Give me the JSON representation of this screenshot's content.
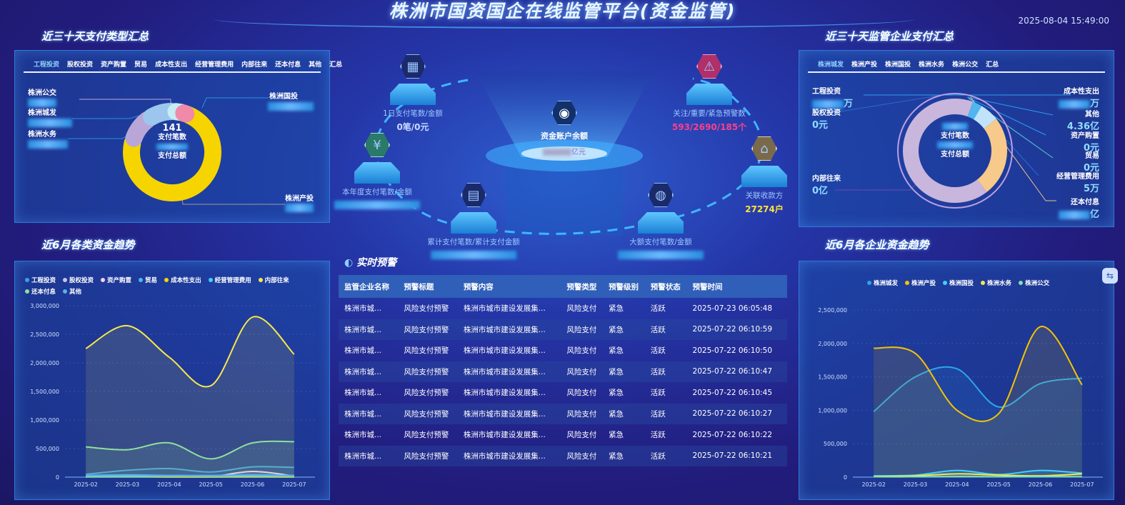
{
  "header": {
    "title": "株洲市国资国企在线监管平台(资金监管)",
    "datetime": "2025-08-04 15:49:00"
  },
  "left_top": {
    "title": "近三十天支付类型汇总",
    "tabs": [
      "工程投资",
      "股权投资",
      "资产购置",
      "贸易",
      "成本性支出",
      "经营管理费用",
      "内部往来",
      "还本付息",
      "其他",
      "汇总"
    ],
    "active_tab": 0,
    "labels": [
      "株洲公交",
      "株洲城发",
      "株洲水务",
      "株洲国投",
      "株洲产投"
    ],
    "center_value": "141",
    "center_label1": "支付笔数",
    "center_label2": "支付总额",
    "segments": [
      {
        "name": "株洲产投",
        "share": 0.74,
        "color": "#f5d400"
      },
      {
        "name": "株洲城发",
        "share": 0.11,
        "color": "#b9a6d8"
      },
      {
        "name": "株洲国投",
        "share": 0.1,
        "color": "#9cc6ee"
      },
      {
        "name": "株洲水务",
        "share": 0.04,
        "color": "#c6ecf4"
      },
      {
        "name": "株洲公交",
        "share": 0.01,
        "color": "#f08aa8"
      }
    ]
  },
  "left_bottom": {
    "title": "近6月各类资金趋势"
  },
  "right_top": {
    "title": "近三十天监管企业支付汇总",
    "tabs": [
      "株洲城发",
      "株洲产投",
      "株洲国投",
      "株洲水务",
      "株洲公交",
      "汇总"
    ],
    "active_tab": 0,
    "labels_left": [
      {
        "name": "工程投资",
        "value": "万"
      },
      {
        "name": "股权投资",
        "value": "0元"
      },
      {
        "name": "内部往来",
        "value": "0亿"
      }
    ],
    "labels_right": [
      {
        "name": "成本性支出",
        "value": "万"
      },
      {
        "name": "其他",
        "value": "4.36亿"
      },
      {
        "name": "资产购置",
        "value": "0元"
      },
      {
        "name": "贸易",
        "value": "0元"
      },
      {
        "name": "经营管理费用",
        "value": "5万"
      },
      {
        "name": "还本付息",
        "value": "亿"
      }
    ],
    "center_label1": "支付笔数",
    "center_label2": "支付总额",
    "segments": [
      {
        "share": 0.03,
        "color": "#4fb6f0"
      },
      {
        "share": 0.06,
        "color": "#bfe4fa"
      },
      {
        "share": 0.25,
        "color": "#f7c98a"
      },
      {
        "share": 0.66,
        "color": "#c9b6dc"
      }
    ]
  },
  "right_bottom": {
    "title": "近6月各企业资金趋势"
  },
  "center": {
    "balance": {
      "label": "资金账户余额",
      "unit": "亿元"
    },
    "nodes": [
      {
        "label": "1日支付笔数/金额",
        "value": "0笔/0元",
        "icon": "grid-icon"
      },
      {
        "label": "本年度支付笔数/金额",
        "value": "",
        "icon": "money-icon"
      },
      {
        "label": "累计支付笔数/累计支付金额",
        "value": "",
        "icon": "document-icon"
      },
      {
        "label": "大额支付笔数/金额",
        "value": "",
        "icon": "globe-icon"
      },
      {
        "label": "关注/重要/紧急预警数",
        "value": "593/2690/185个",
        "icon": "warning-icon"
      },
      {
        "label": "关联收款方",
        "value": "27274户",
        "icon": "home-icon"
      }
    ],
    "alerts": {
      "title": "实时预警",
      "headers": [
        "监管企业名称",
        "预警标题",
        "预警内容",
        "预警类型",
        "预警级别",
        "预警状态",
        "预警时间"
      ],
      "rows": [
        [
          "株洲市城...",
          "风险支付预警",
          "株洲市城市建设发展集...",
          "风险支付",
          "紧急",
          "活跃",
          "2025-07-23 06:05:48"
        ],
        [
          "株洲市城...",
          "风险支付预警",
          "株洲市城市建设发展集...",
          "风险支付",
          "紧急",
          "活跃",
          "2025-07-22 06:10:59"
        ],
        [
          "株洲市城...",
          "风险支付预警",
          "株洲市城市建设发展集...",
          "风险支付",
          "紧急",
          "活跃",
          "2025-07-22 06:10:50"
        ],
        [
          "株洲市城...",
          "风险支付预警",
          "株洲市城市建设发展集...",
          "风险支付",
          "紧急",
          "活跃",
          "2025-07-22 06:10:47"
        ],
        [
          "株洲市城...",
          "风险支付预警",
          "株洲市城市建设发展集...",
          "风险支付",
          "紧急",
          "活跃",
          "2025-07-22 06:10:45"
        ],
        [
          "株洲市城...",
          "风险支付预警",
          "株洲市城市建设发展集...",
          "风险支付",
          "紧急",
          "活跃",
          "2025-07-22 06:10:27"
        ],
        [
          "株洲市城...",
          "风险支付预警",
          "株洲市城市建设发展集...",
          "风险支付",
          "紧急",
          "活跃",
          "2025-07-22 06:10:22"
        ],
        [
          "株洲市城...",
          "风险支付预警",
          "株洲市城市建设发展集...",
          "风险支付",
          "紧急",
          "活跃",
          "2025-07-22 06:10:21"
        ]
      ]
    }
  },
  "chart_data": [
    {
      "type": "area",
      "categories": [
        "2025-02",
        "2025-03",
        "2025-04",
        "2025-05",
        "2025-06",
        "2025-07"
      ],
      "ylim": [
        0,
        3000000
      ],
      "yticks": [
        0,
        500000,
        1000000,
        1500000,
        2000000,
        2500000,
        3000000
      ],
      "ytick_labels": [
        "0",
        "500,000",
        "1,000,000",
        "1,500,000",
        "2,000,000",
        "2,500,000",
        "3,000,000"
      ],
      "grid": true,
      "legend": "top",
      "series": [
        {
          "name": "工程投资",
          "color": "#3aa0e8",
          "values": [
            50000,
            120000,
            150000,
            90000,
            180000,
            170000
          ]
        },
        {
          "name": "股权投资",
          "color": "#c9c2ea",
          "values": [
            0,
            0,
            0,
            0,
            0,
            0
          ]
        },
        {
          "name": "资产购置",
          "color": "#f0d2f0",
          "values": [
            0,
            20000,
            10000,
            10000,
            100000,
            20000
          ]
        },
        {
          "name": "贸易",
          "color": "#49b8f0",
          "values": [
            0,
            0,
            0,
            0,
            0,
            0
          ]
        },
        {
          "name": "成本性支出",
          "color": "#f5d400",
          "values": [
            10000,
            20000,
            5000,
            5000,
            10000,
            5000
          ]
        },
        {
          "name": "经营管理费用",
          "color": "#3fd0ff",
          "values": [
            20000,
            30000,
            20000,
            20000,
            30000,
            20000
          ]
        },
        {
          "name": "内部往来",
          "color": "#f7e84a",
          "values": [
            2250000,
            2650000,
            2100000,
            1600000,
            2800000,
            2150000
          ]
        },
        {
          "name": "还本付息",
          "color": "#8fe0a0",
          "values": [
            530000,
            480000,
            600000,
            320000,
            600000,
            620000
          ]
        },
        {
          "name": "其他",
          "color": "#5ab0f0",
          "values": [
            30000,
            40000,
            30000,
            30000,
            40000,
            30000
          ]
        }
      ]
    },
    {
      "type": "area",
      "categories": [
        "2025-02",
        "2025-03",
        "2025-04",
        "2025-05",
        "2025-06",
        "2025-07"
      ],
      "ylim": [
        0,
        2500000
      ],
      "yticks": [
        0,
        500000,
        1000000,
        1500000,
        2000000,
        2500000
      ],
      "ytick_labels": [
        "0",
        "500,000",
        "1,000,000",
        "1,500,000",
        "2,000,000",
        "2,500,000"
      ],
      "grid": true,
      "legend": "top",
      "series": [
        {
          "name": "株洲城发",
          "color": "#2aa6ee",
          "values": [
            980000,
            1500000,
            1620000,
            1050000,
            1400000,
            1480000
          ]
        },
        {
          "name": "株洲产投",
          "color": "#f5c400",
          "values": [
            1930000,
            1850000,
            1000000,
            950000,
            2250000,
            1380000
          ]
        },
        {
          "name": "株洲国投",
          "color": "#40d0ff",
          "values": [
            20000,
            30000,
            100000,
            40000,
            100000,
            60000
          ]
        },
        {
          "name": "株洲水务",
          "color": "#f5e84a",
          "values": [
            10000,
            20000,
            50000,
            30000,
            20000,
            50000
          ]
        },
        {
          "name": "株洲公交",
          "color": "#7fe0b0",
          "values": [
            5000,
            5000,
            10000,
            5000,
            10000,
            5000
          ]
        }
      ]
    }
  ]
}
